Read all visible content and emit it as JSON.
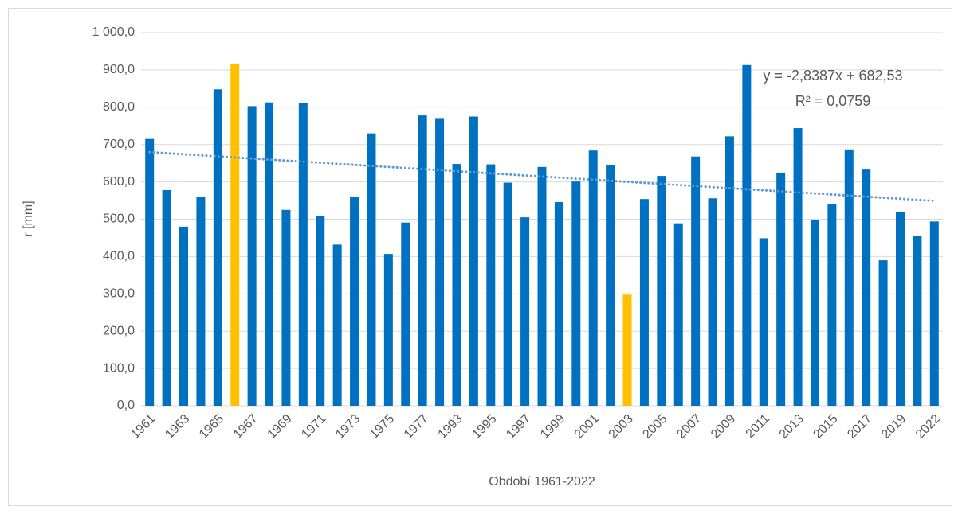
{
  "chart_data": {
    "type": "bar",
    "x_label": "Období 1961-2022",
    "y_label": "r [mm]",
    "categories": [
      "1961",
      null,
      "1963",
      null,
      "1965",
      null,
      "1967",
      null,
      "1969",
      null,
      "1971",
      null,
      "1973",
      null,
      "1975",
      null,
      "1977",
      null,
      "1993",
      null,
      "1995",
      null,
      "1997",
      null,
      "1999",
      null,
      "2001",
      null,
      "2003",
      null,
      "2005",
      null,
      "2007",
      null,
      "2009",
      null,
      "2011",
      null,
      "2013",
      null,
      "2015",
      null,
      "2017",
      null,
      "2019",
      null,
      "2022"
    ],
    "values": [
      715,
      578,
      480,
      560,
      848,
      917,
      803,
      813,
      525,
      811,
      508,
      432,
      560,
      730,
      407,
      491,
      778,
      771,
      648,
      775,
      647,
      598,
      505,
      640,
      546,
      601,
      684,
      646,
      298,
      554,
      616,
      489,
      668,
      556,
      722,
      913,
      449,
      625,
      744,
      499,
      541,
      687,
      633,
      390,
      520,
      455,
      494
    ],
    "color": "#0070c0",
    "highlight_color": "#ffc000",
    "highlight_indices": [
      5,
      28
    ],
    "ylim": [
      0,
      1000
    ],
    "yticks": [
      {
        "value": 0,
        "label": "0,0"
      },
      {
        "value": 100,
        "label": "100,0"
      },
      {
        "value": 200,
        "label": "200,0"
      },
      {
        "value": 300,
        "label": "300,0"
      },
      {
        "value": 400,
        "label": "400,0"
      },
      {
        "value": 500,
        "label": "500,0"
      },
      {
        "value": 600,
        "label": "600,0"
      },
      {
        "value": 700,
        "label": "700,0"
      },
      {
        "value": 800,
        "label": "800,0"
      },
      {
        "value": 900,
        "label": "900,0"
      },
      {
        "value": 1000,
        "label": "1 000,0"
      }
    ],
    "grid": true,
    "trendline": {
      "equation": "y = -2,8387x + 682,53",
      "r_squared": "R² = 0,0759",
      "slope": -2.8387,
      "intercept": 682.53,
      "color": "#5b9bd5"
    }
  }
}
